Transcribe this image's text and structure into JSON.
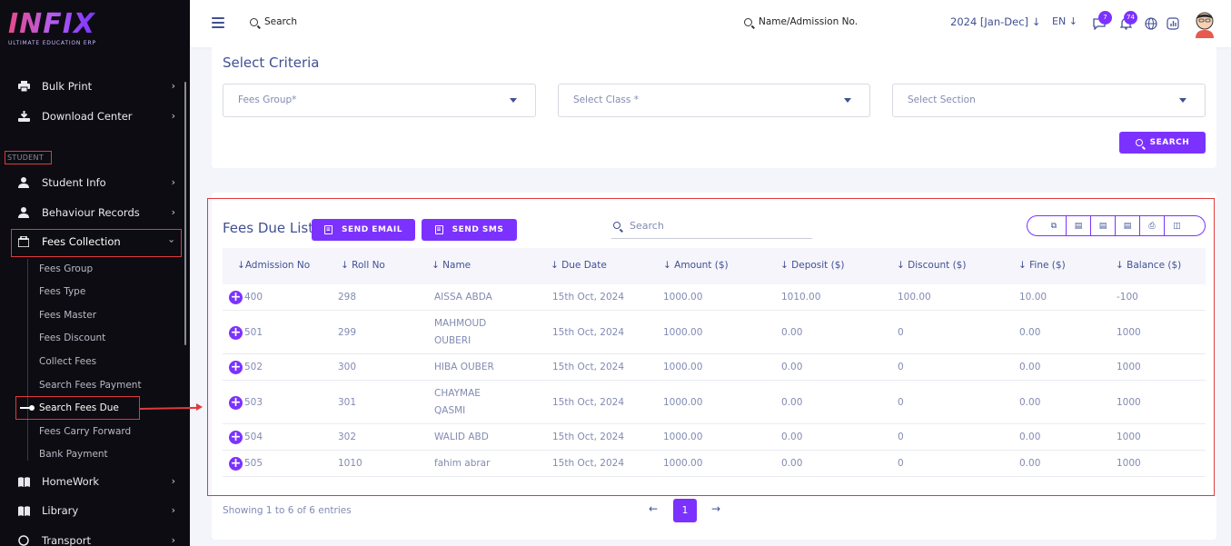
{
  "brand": {
    "logo": "INFIX",
    "tagline": "ULTIMATE EDUCATION ERP"
  },
  "sidebar": {
    "items_top": [
      {
        "label": "Bulk Print",
        "icon": "printer-icon"
      },
      {
        "label": "Download Center",
        "icon": "download-icon"
      }
    ],
    "section_label": "STUDENT",
    "items_student": [
      {
        "label": "Student Info",
        "icon": "user-icon"
      },
      {
        "label": "Behaviour Records",
        "icon": "user-icon"
      },
      {
        "label": "Fees Collection",
        "icon": "briefcase-icon"
      }
    ],
    "fees_sub": [
      "Fees Group",
      "Fees Type",
      "Fees Master",
      "Fees Discount",
      "Collect Fees",
      "Search Fees Payment",
      "Search Fees Due",
      "Fees Carry Forward",
      "Bank Payment"
    ],
    "items_bottom": [
      {
        "label": "HomeWork",
        "icon": "book-icon"
      },
      {
        "label": "Library",
        "icon": "library-icon"
      },
      {
        "label": "Transport",
        "icon": "transport-icon"
      }
    ]
  },
  "header": {
    "search_label": "Search",
    "student_search_label": "Name/Admission No.",
    "academic_year": "2024 [Jan-Dec]",
    "language": "EN",
    "messages_count": "7",
    "notifications_count": "74"
  },
  "criteria": {
    "title": "Select Criteria",
    "fees_group_placeholder": "Fees Group*",
    "class_placeholder": "Select Class *",
    "section_placeholder": "Select Section",
    "search_button": "SEARCH"
  },
  "list": {
    "title": "Fees Due List",
    "send_email": "SEND EMAIL",
    "send_sms": "SEND SMS",
    "search_placeholder": "Search",
    "columns": [
      "Admission No",
      "Roll No",
      "Name",
      "Due Date",
      "Amount ($)",
      "Deposit ($)",
      "Discount ($)",
      "Fine ($)",
      "Balance ($)"
    ],
    "rows": [
      {
        "admission": "400",
        "roll": "298",
        "name1": "AISSA ABDA",
        "name2": "",
        "due": "15th Oct, 2024",
        "amount": "1000.00",
        "deposit": "1010.00",
        "discount": "100.00",
        "fine": "10.00",
        "balance": "-100"
      },
      {
        "admission": "501",
        "roll": "299",
        "name1": "MAHMOUD",
        "name2": "OUBERI",
        "due": "15th Oct, 2024",
        "amount": "1000.00",
        "deposit": "0.00",
        "discount": "0",
        "fine": "0.00",
        "balance": "1000"
      },
      {
        "admission": "502",
        "roll": "300",
        "name1": "HIBA OUBER",
        "name2": "",
        "due": "15th Oct, 2024",
        "amount": "1000.00",
        "deposit": "0.00",
        "discount": "0",
        "fine": "0.00",
        "balance": "1000"
      },
      {
        "admission": "503",
        "roll": "301",
        "name1": "CHAYMAE",
        "name2": "QASMI",
        "due": "15th Oct, 2024",
        "amount": "1000.00",
        "deposit": "0.00",
        "discount": "0",
        "fine": "0.00",
        "balance": "1000"
      },
      {
        "admission": "504",
        "roll": "302",
        "name1": "WALID ABD",
        "name2": "",
        "due": "15th Oct, 2024",
        "amount": "1000.00",
        "deposit": "0.00",
        "discount": "0",
        "fine": "0.00",
        "balance": "1000"
      },
      {
        "admission": "505",
        "roll": "1010",
        "name1": "fahim abrar",
        "name2": "",
        "due": "15th Oct, 2024",
        "amount": "1000.00",
        "deposit": "0.00",
        "discount": "0",
        "fine": "0.00",
        "balance": "1000"
      }
    ],
    "showing": "Showing 1 to 6 of 6 entries",
    "current_page": "1"
  },
  "colors": {
    "accent": "#7c32ff",
    "sidebar_bg": "#0c0c12",
    "text": "#415094",
    "muted": "#828bb2",
    "highlight": "#e0393b"
  }
}
